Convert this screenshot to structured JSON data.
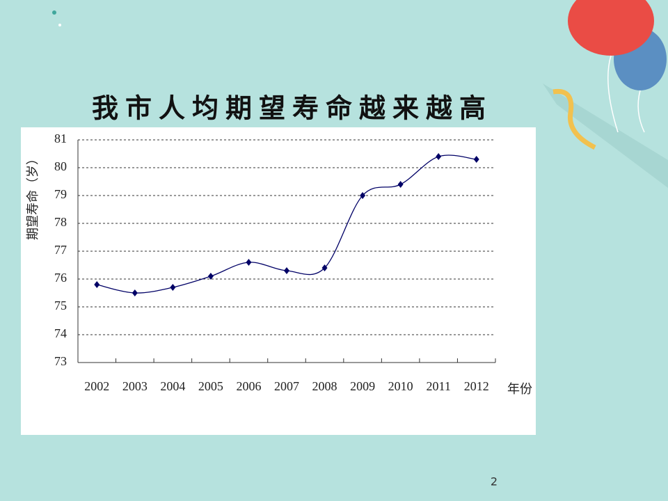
{
  "chart_data": {
    "type": "line",
    "title": "我市人均期望寿命越来越高",
    "y_label": "期望寿命（岁）",
    "x_label": "年份",
    "categories": [
      "2002",
      "2003",
      "2004",
      "2005",
      "2006",
      "2007",
      "2008",
      "2009",
      "2010",
      "2011",
      "2012"
    ],
    "series": [
      {
        "name": "期望寿命",
        "color": "#000066",
        "values": [
          75.8,
          75.5,
          75.7,
          76.1,
          76.6,
          76.3,
          76.4,
          79.0,
          79.4,
          80.4,
          80.3
        ]
      }
    ],
    "ylim": [
      73,
      81
    ],
    "yticks": [
      73,
      74,
      75,
      76,
      77,
      78,
      79,
      80,
      81
    ],
    "grid": true
  },
  "page_number": "2"
}
